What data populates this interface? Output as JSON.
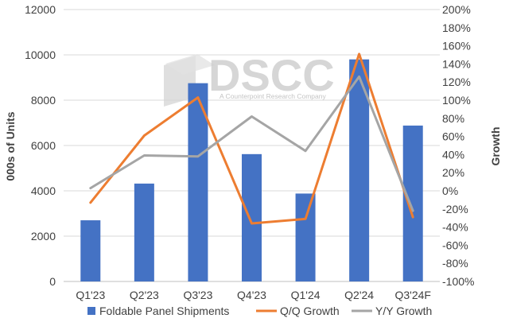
{
  "chart_data": {
    "type": "bar",
    "categories": [
      "Q1'23",
      "Q2'23",
      "Q3'23",
      "Q4'23",
      "Q1'24",
      "Q2'24",
      "Q3'24F"
    ],
    "series": [
      {
        "name": "Foldable Panel Shipments",
        "type": "bar",
        "axis": "left",
        "color": "#4472c4",
        "values": [
          2700,
          4320,
          8750,
          5620,
          3880,
          9800,
          6880
        ]
      },
      {
        "name": "Q/Q Growth",
        "type": "line",
        "axis": "right",
        "color": "#ed7d31",
        "values": [
          -13,
          61,
          103,
          -36,
          -31,
          151,
          -29
        ]
      },
      {
        "name": "Y/Y Growth",
        "type": "line",
        "axis": "right",
        "color": "#a5a5a5",
        "values": [
          3,
          39,
          38,
          82,
          44,
          126,
          -22
        ]
      }
    ],
    "ylabel": "000s of Units",
    "y2label": "Growth",
    "ylim": [
      0,
      12000
    ],
    "y2lim": [
      -100,
      200
    ],
    "yticks": [
      "0",
      "2000",
      "4000",
      "6000",
      "8000",
      "10000",
      "12000"
    ],
    "y2ticks": [
      "-100%",
      "-80%",
      "-60%",
      "-40%",
      "-20%",
      "0%",
      "20%",
      "40%",
      "60%",
      "80%",
      "100%",
      "120%",
      "140%",
      "160%",
      "180%",
      "200%"
    ],
    "grid": true,
    "legend": "bottom",
    "watermark": {
      "text": "DSCC",
      "subtitle": "A Counterpoint Research Company"
    }
  }
}
